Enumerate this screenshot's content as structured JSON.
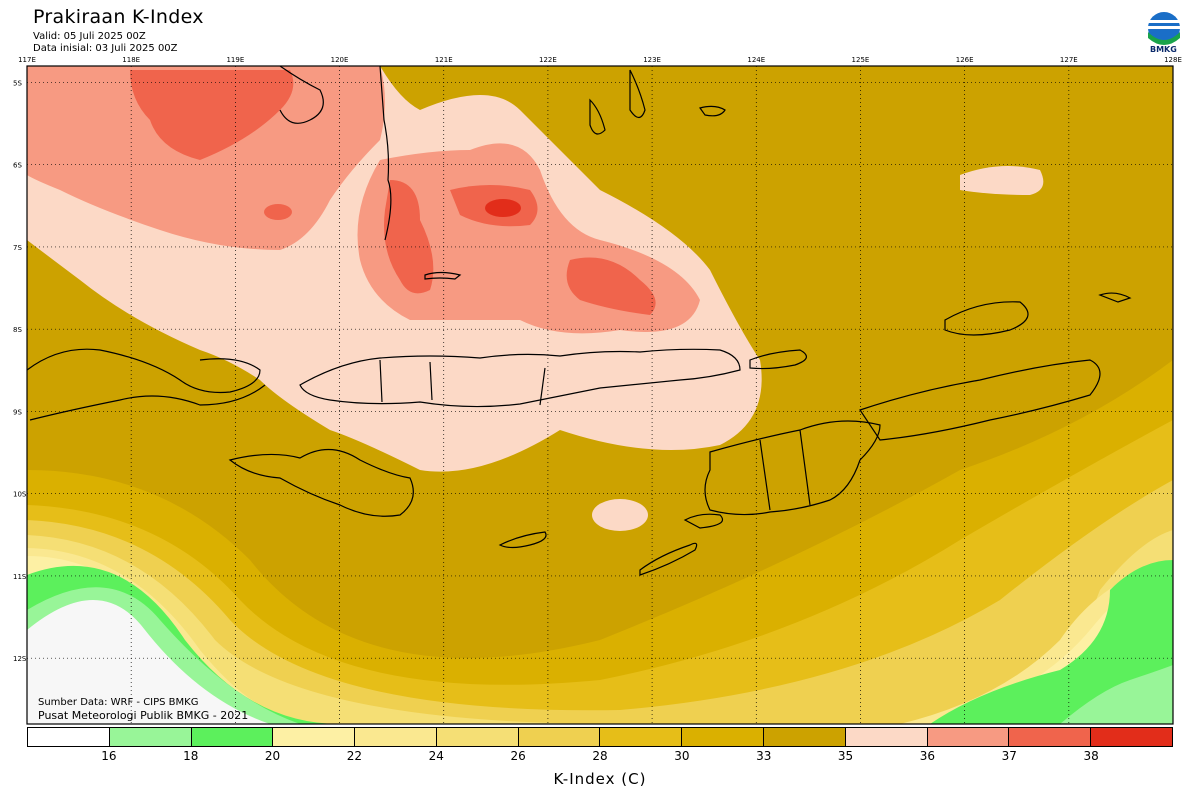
{
  "header": {
    "title": "Prakiraan K-Index",
    "valid": "Valid: 05 Juli 2025 00Z",
    "initial": "Data inisial: 03 Juli 2025 00Z"
  },
  "logo": {
    "text": "BMKG"
  },
  "map": {
    "lon_labels": [
      "117E",
      "118E",
      "119E",
      "120E",
      "121E",
      "122E",
      "123E",
      "124E",
      "125E",
      "126E",
      "127E",
      "128E"
    ],
    "lat_labels": [
      "5S",
      "6S",
      "7S",
      "8S",
      "9S",
      "10S",
      "11S",
      "12S"
    ],
    "lon_range": [
      117,
      128
    ],
    "lat_range": [
      -4.8,
      -12.8
    ],
    "colors": {
      "c_35_36": "#fcd9c6",
      "c_36_37": "#f79a82",
      "c_37_38": "#f0644c",
      "c_38_plus": "#e22d1a",
      "c_33_35": "#cca200",
      "c_30_33": "#dab000",
      "c_28_30": "#e6be18",
      "c_26_28": "#efd050",
      "c_24_26": "#f5df75",
      "c_22_24": "#fae890",
      "c_20_22": "#fdf0a4",
      "c_18_20": "#5cf05c",
      "c_16_18": "#98f598",
      "c_lt_16": "#f7f7f7"
    }
  },
  "credits": {
    "source": "Sumber Data: WRF - CIPS BMKG",
    "org": "Pusat Meteorologi Publik BMKG - 2021"
  },
  "colorbar": {
    "title": "K-Index (C)",
    "labels": [
      "16",
      "18",
      "20",
      "22",
      "24",
      "26",
      "28",
      "30",
      "33",
      "35",
      "36",
      "37",
      "38"
    ],
    "colors": [
      "#ffffff",
      "#98f598",
      "#5cf05c",
      "#fdf0a4",
      "#fae890",
      "#f5df75",
      "#efd050",
      "#e6be18",
      "#dab000",
      "#cca200",
      "#fcd9c6",
      "#f79a82",
      "#f0644c",
      "#e22d1a"
    ]
  }
}
